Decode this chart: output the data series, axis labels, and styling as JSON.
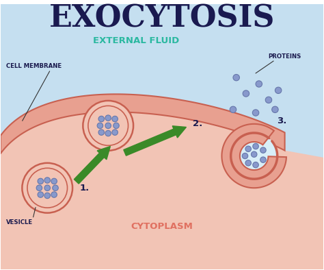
{
  "title": "EXOCYTOSIS",
  "title_color": "#1a1a50",
  "title_fontsize": 32,
  "bg_color": "#ffffff",
  "cytoplasm_color": "#f2c4b5",
  "external_fluid_color": "#c5dff0",
  "membrane_fill": "#e8a090",
  "membrane_stroke": "#c86050",
  "vesicle_fill": "#f2c4b5",
  "vesicle_stroke": "#c86050",
  "vesicle3_fill": "#d8eef8",
  "dot_fill": "#8899cc",
  "dot_stroke": "#6677aa",
  "arrow_color": "#3a8a28",
  "label_cell_membrane": "CELL MEMBRANE",
  "label_external_fluid": "EXTERNAL FLUID",
  "label_proteins": "PROTEINS",
  "label_vesicle": "VESICLE",
  "label_cytoplasm": "CYTOPLASM",
  "label_step1": "1.",
  "label_step2": "2.",
  "label_step3": "3.",
  "label_color_teal": "#2ab8a0",
  "label_color_dark": "#1a1a4e",
  "label_color_pink": "#e07060",
  "line_color": "#333333"
}
